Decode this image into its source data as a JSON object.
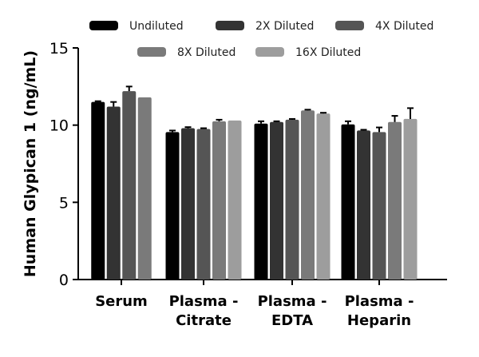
{
  "chart_data": {
    "type": "bar",
    "title": "",
    "xlabel": "",
    "ylabel": "Human Glypican 1 (ng/mL)",
    "ylim": [
      0,
      15
    ],
    "yticks": [
      0,
      5,
      10,
      15
    ],
    "categories": [
      "Serum",
      "Plasma - Citrate",
      "Plasma - EDTA",
      "Plasma - Heparin"
    ],
    "category_lines": [
      [
        "Serum"
      ],
      [
        "Plasma -",
        "Citrate"
      ],
      [
        "Plasma -",
        "EDTA"
      ],
      [
        "Plasma -",
        "Heparin"
      ]
    ],
    "legend_position": "top",
    "series": [
      {
        "name": "Undiluted",
        "color": "#000000",
        "values": [
          11.5,
          9.55,
          10.1,
          10.05
        ],
        "errors": [
          0.05,
          0.1,
          0.15,
          0.2
        ]
      },
      {
        "name": "2X Diluted",
        "color": "#333333",
        "values": [
          11.2,
          9.8,
          10.2,
          9.65
        ],
        "errors": [
          0.3,
          0.07,
          0.05,
          0.05
        ]
      },
      {
        "name": "4X Diluted",
        "color": "#555555",
        "values": [
          12.2,
          9.75,
          10.35,
          9.55
        ],
        "errors": [
          0.3,
          0.05,
          0.05,
          0.3
        ]
      },
      {
        "name": "8X Diluted",
        "color": "#7a7a7a",
        "values": [
          11.8,
          10.25,
          10.95,
          10.2
        ],
        "errors": [
          0,
          0.1,
          0.05,
          0.4
        ]
      },
      {
        "name": "16X Diluted",
        "color": "#9d9d9d",
        "values": [
          null,
          10.3,
          10.75,
          10.4
        ],
        "errors": [
          0,
          0,
          0.05,
          0.7
        ]
      }
    ]
  }
}
